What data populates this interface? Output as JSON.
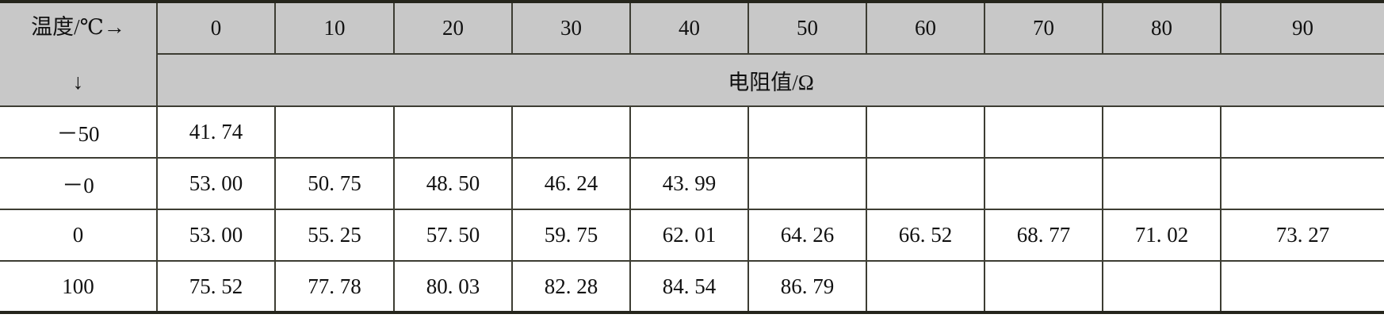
{
  "table": {
    "corner_label": "温度/℃→",
    "corner_arrow": "↓",
    "columns": [
      "0",
      "10",
      "20",
      "30",
      "40",
      "50",
      "60",
      "70",
      "80",
      "90"
    ],
    "unit_label": "电阻值/Ω",
    "header_color": "#c8c8c8",
    "rows": [
      {
        "label": "－50",
        "values": [
          "41. 74",
          "",
          "",
          "",
          "",
          "",
          "",
          "",
          "",
          ""
        ]
      },
      {
        "label": "－0",
        "values": [
          "53. 00",
          "50. 75",
          "48. 50",
          "46. 24",
          "43. 99",
          "",
          "",
          "",
          "",
          ""
        ]
      },
      {
        "label": "0",
        "values": [
          "53. 00",
          "55. 25",
          "57. 50",
          "59. 75",
          "62. 01",
          "64. 26",
          "66. 52",
          "68. 77",
          "71. 02",
          "73. 27"
        ]
      },
      {
        "label": "100",
        "values": [
          "75. 52",
          "77. 78",
          "80. 03",
          "82. 28",
          "84. 54",
          "86. 79",
          "",
          "",
          "",
          ""
        ]
      }
    ]
  }
}
